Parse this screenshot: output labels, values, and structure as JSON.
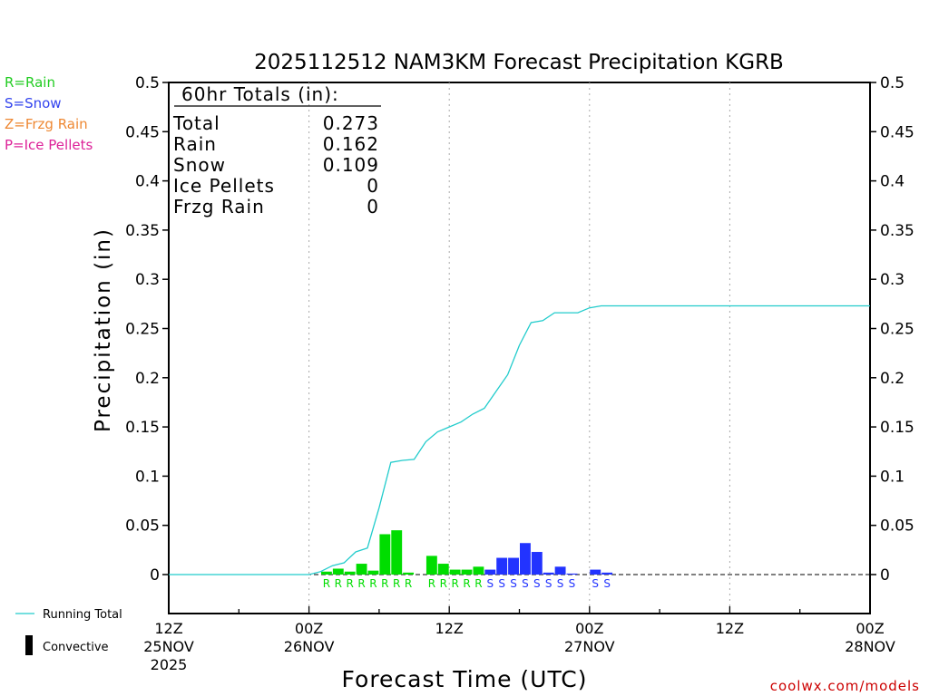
{
  "chart_data": {
    "type": "bar",
    "title": "2025112512 NAM3KM Forecast Precipitation KGRB",
    "ylabel": "Precipitation  (in)",
    "xlabel": "Forecast Time (UTC)",
    "xlim": [
      0,
      60
    ],
    "ylim": [
      -0.04,
      0.5
    ],
    "yticks": [
      0,
      0.05,
      0.1,
      0.15,
      0.2,
      0.25,
      0.3,
      0.35,
      0.4,
      0.45,
      0.5
    ],
    "ytick_labels": [
      "0",
      "0.05",
      "0.1",
      "0.15",
      "0.2",
      "0.25",
      "0.3",
      "0.35",
      "0.4",
      "0.45",
      "0.5"
    ],
    "xticks": [
      {
        "hour": 0,
        "lines": [
          "12Z",
          "25NOV",
          "2025"
        ]
      },
      {
        "hour": 12,
        "lines": [
          "00Z",
          "26NOV"
        ]
      },
      {
        "hour": 24,
        "lines": [
          "12Z"
        ]
      },
      {
        "hour": 36,
        "lines": [
          "00Z",
          "27NOV"
        ]
      },
      {
        "hour": 48,
        "lines": [
          "12Z"
        ]
      },
      {
        "hour": 60,
        "lines": [
          "00Z",
          "28NOV"
        ]
      }
    ],
    "grid_hours": [
      12,
      24,
      36,
      48
    ],
    "ptype_legend": [
      {
        "text": "R=Rain",
        "color": "#22cc22"
      },
      {
        "text": "S=Snow",
        "color": "#3344ee"
      },
      {
        "text": "Z=Frzg Rain",
        "color": "#ee8833"
      },
      {
        "text": "P=Ice Pellets",
        "color": "#dd2299"
      }
    ],
    "totals": {
      "header": "60hr Totals (in):",
      "rows": [
        {
          "label": "Total",
          "value": "0.273"
        },
        {
          "label": "Rain",
          "value": "0.162"
        },
        {
          "label": "Snow",
          "value": "0.109"
        },
        {
          "label": "Ice Pellets",
          "value": "0"
        },
        {
          "label": "Frzg Rain",
          "value": "0"
        }
      ]
    },
    "series": [
      {
        "name": "Hourly Precipitation",
        "colors": {
          "R": "#00dd00",
          "S": "#2233ff"
        },
        "hour_ending": [
          14,
          15,
          16,
          17,
          18,
          19,
          20,
          21,
          23,
          24,
          25,
          26,
          27,
          28,
          29,
          30,
          31,
          32,
          33,
          34,
          35,
          37,
          38
        ],
        "values": [
          0.003,
          0.006,
          0.003,
          0.011,
          0.004,
          0.041,
          0.045,
          0.002,
          0.019,
          0.011,
          0.005,
          0.005,
          0.008,
          0.005,
          0.017,
          0.017,
          0.032,
          0.023,
          0.002,
          0.008,
          0.001,
          0.005,
          0.002
        ],
        "ptype": [
          "R",
          "R",
          "R",
          "R",
          "R",
          "R",
          "R",
          "R",
          "R",
          "R",
          "R",
          "R",
          "R",
          "S",
          "S",
          "S",
          "S",
          "S",
          "S",
          "S",
          "S",
          "S",
          "S"
        ]
      },
      {
        "name": "Running Total",
        "color": "#22cccc",
        "x": [
          0,
          12,
          13,
          14,
          15,
          16,
          17,
          18,
          19,
          20,
          21,
          22,
          23,
          24,
          25,
          26,
          27,
          28,
          29,
          30,
          31,
          32,
          33,
          34,
          35,
          36,
          37,
          38,
          39,
          40,
          60
        ],
        "y": [
          0,
          0,
          0.003,
          0.009,
          0.012,
          0.023,
          0.027,
          0.068,
          0.114,
          0.116,
          0.117,
          0.135,
          0.145,
          0.15,
          0.155,
          0.163,
          0.169,
          0.186,
          0.203,
          0.233,
          0.256,
          0.258,
          0.266,
          0.266,
          0.266,
          0.271,
          0.273,
          0.273,
          0.273,
          0.273,
          0.273
        ]
      }
    ],
    "legend": [
      {
        "label": "Running Total",
        "kind": "line"
      },
      {
        "label": "Convective",
        "kind": "bar"
      }
    ],
    "credit": "coolwx.com/models"
  }
}
